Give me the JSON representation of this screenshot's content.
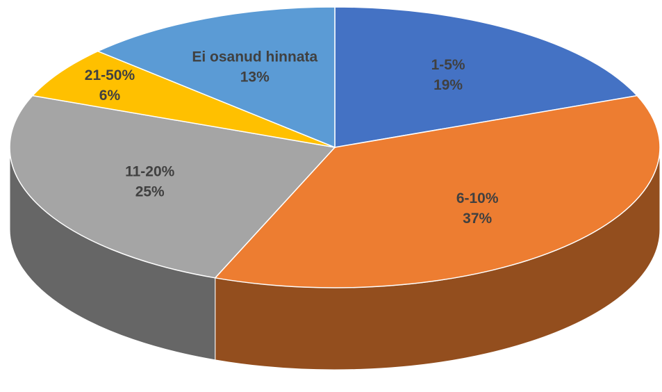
{
  "chart_data": {
    "type": "pie3d",
    "categories": [
      "1-5%",
      "6-10%",
      "11-20%",
      "21-50%",
      "Ei osanud hinnata"
    ],
    "values": [
      19,
      37,
      25,
      6,
      13
    ],
    "value_labels": [
      "19%",
      "37%",
      "25%",
      "6%",
      "13%"
    ],
    "colors": [
      "#4472c4",
      "#ed7d31",
      "#a5a5a5",
      "#ffc000",
      "#5b9bd5"
    ]
  }
}
